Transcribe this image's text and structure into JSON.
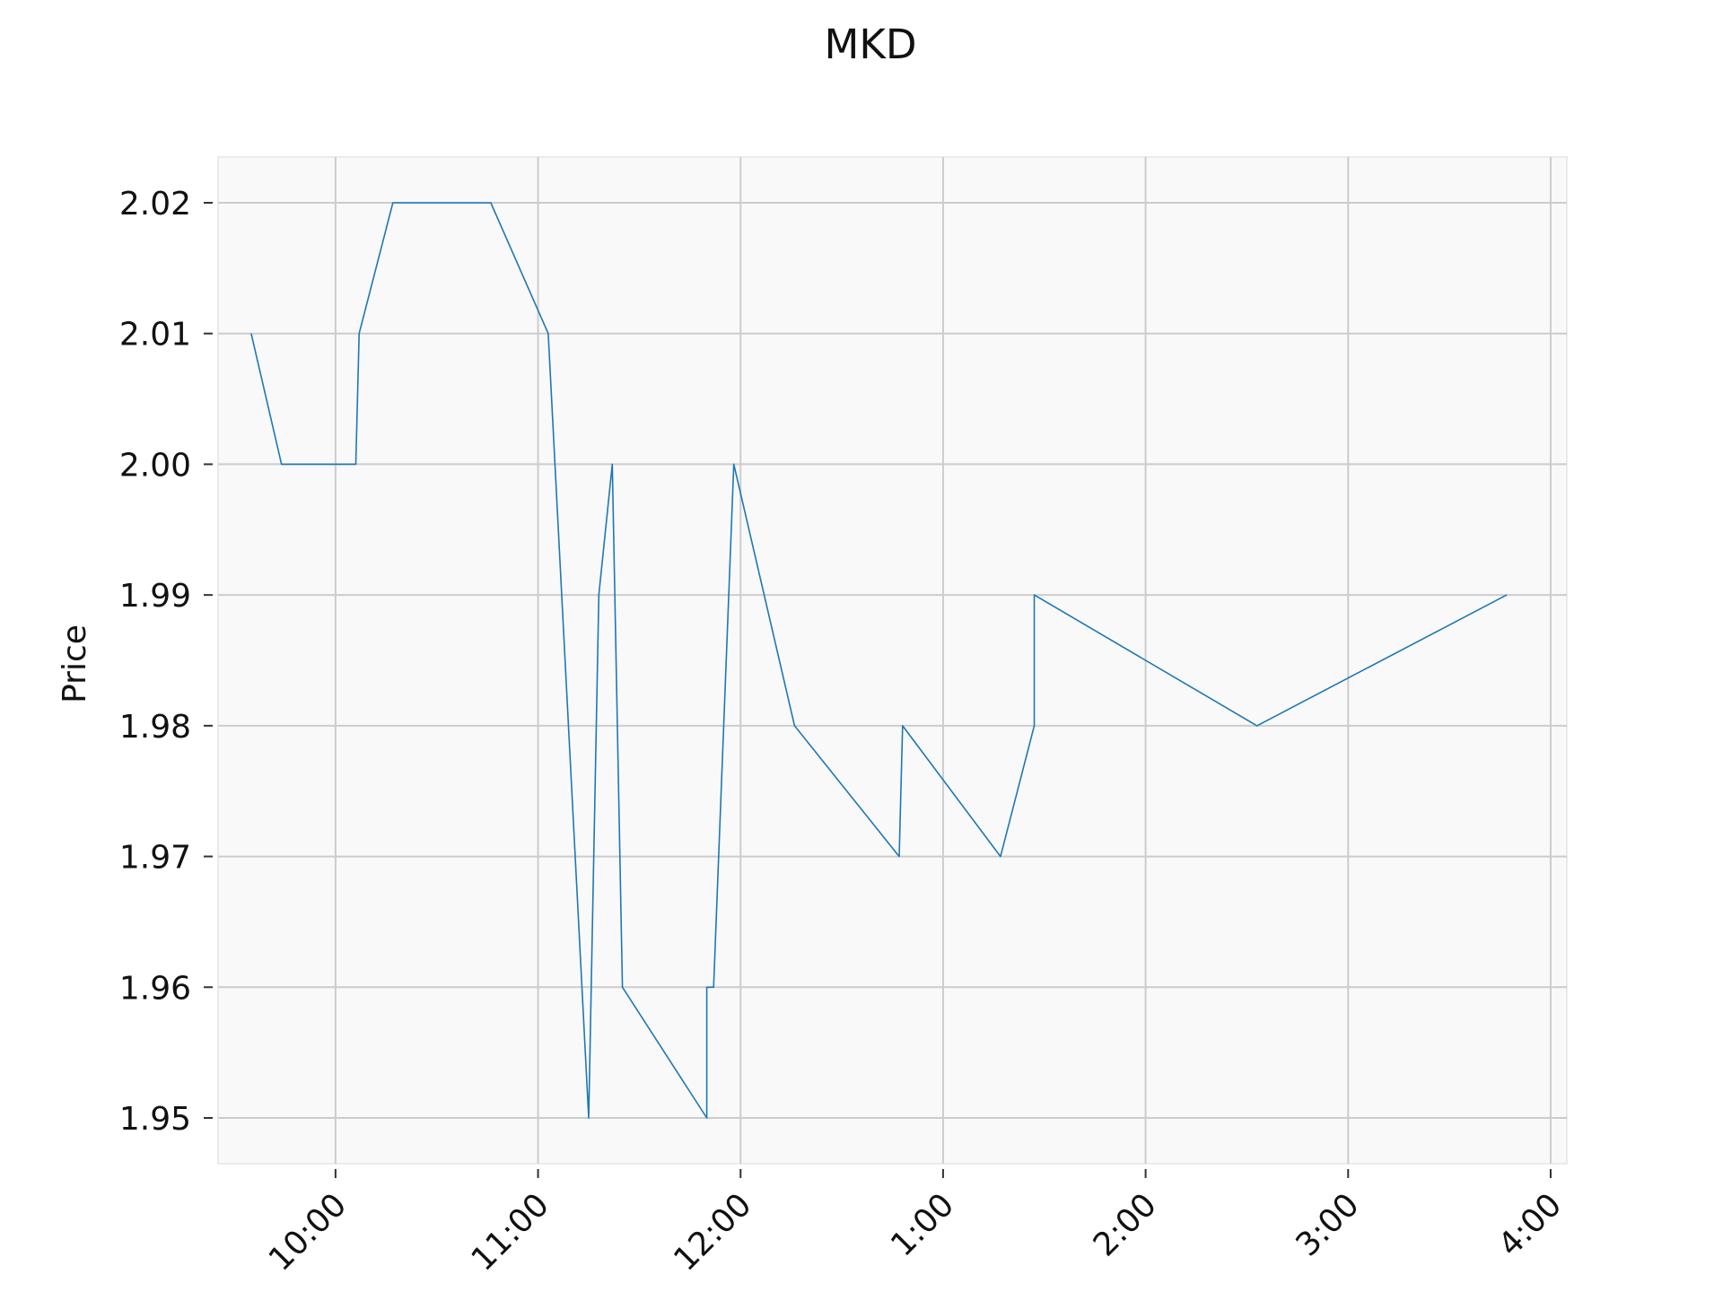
{
  "chart_data": {
    "type": "line",
    "title": "MKD",
    "xlabel": "",
    "ylabel": "Price",
    "x_ticks": [
      "10:00",
      "11:00",
      "12:00",
      "1:00",
      "2:00",
      "3:00",
      "4:00"
    ],
    "x_tick_hours": [
      10,
      11,
      12,
      13,
      14,
      15,
      16
    ],
    "xlim_hours": [
      9.42,
      16.08
    ],
    "y_ticks": [
      "1.95",
      "1.96",
      "1.97",
      "1.98",
      "1.99",
      "2.00",
      "2.01",
      "2.02"
    ],
    "y_tick_values": [
      1.95,
      1.96,
      1.97,
      1.98,
      1.99,
      2.0,
      2.01,
      2.02
    ],
    "ylim": [
      1.9465,
      2.0235
    ],
    "grid": true,
    "background": "#f9f9f9",
    "grid_color": "#cccccc",
    "series": [
      {
        "color": "#1f77b4",
        "points": [
          [
            "9:35",
            2.01
          ],
          [
            "9:44",
            2.0
          ],
          [
            "10:06",
            2.0
          ],
          [
            "10:07",
            2.01
          ],
          [
            "10:17",
            2.02
          ],
          [
            "10:46",
            2.02
          ],
          [
            "11:03",
            2.01
          ],
          [
            "11:15",
            1.95
          ],
          [
            "11:18",
            1.99
          ],
          [
            "11:22",
            2.0
          ],
          [
            "11:25",
            1.96
          ],
          [
            "11:50",
            1.95
          ],
          [
            "11:50",
            1.96
          ],
          [
            "11:52",
            1.96
          ],
          [
            "11:58",
            2.0
          ],
          [
            "12:16",
            1.98
          ],
          [
            "12:47",
            1.97
          ],
          [
            "12:48",
            1.98
          ],
          [
            "1:17",
            1.97
          ],
          [
            "1:27",
            1.98
          ],
          [
            "1:27",
            1.99
          ],
          [
            "2:33",
            1.98
          ],
          [
            "3:47",
            1.99
          ]
        ]
      }
    ]
  }
}
